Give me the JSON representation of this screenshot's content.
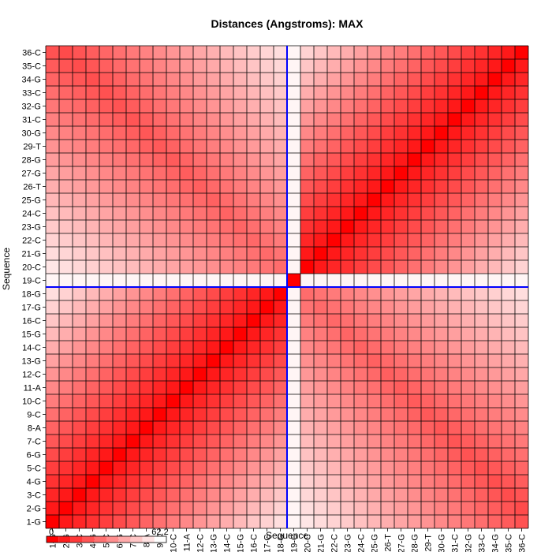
{
  "chart_data": {
    "type": "heatmap",
    "title": "Distances (Angstroms):  MAX",
    "xlabel": "Sequence",
    "ylabel": "Sequence",
    "x_categories": [
      "1-G",
      "2-G",
      "3-C",
      "4-G",
      "5-C",
      "6-G",
      "7-C",
      "8-A",
      "9-C",
      "10-C",
      "11-A",
      "12-C",
      "13-G",
      "14-C",
      "15-G",
      "16-C",
      "17-G",
      "18-G",
      "19-C",
      "20-C",
      "21-G",
      "22-C",
      "23-G",
      "24-C",
      "25-G",
      "26-T",
      "27-G",
      "28-G",
      "29-T",
      "30-G",
      "31-C",
      "32-G",
      "33-C",
      "34-G",
      "35-C",
      "36-C"
    ],
    "y_categories": [
      "1-G",
      "2-G",
      "3-C",
      "4-G",
      "5-C",
      "6-G",
      "7-C",
      "8-A",
      "9-C",
      "10-C",
      "11-A",
      "12-C",
      "13-G",
      "14-C",
      "15-G",
      "16-C",
      "17-G",
      "18-G",
      "19-C",
      "20-C",
      "21-G",
      "22-C",
      "23-G",
      "24-C",
      "25-G",
      "26-T",
      "27-G",
      "28-G",
      "29-T",
      "30-G",
      "31-C",
      "32-G",
      "33-C",
      "34-G",
      "35-C",
      "36-C"
    ],
    "value_range": [
      0,
      62.2
    ],
    "colorbar": {
      "min_label": "0",
      "max_label": "62.2",
      "low_color": "#ff0000",
      "high_color": "#ffffff"
    },
    "highlight": {
      "category": "19-C",
      "line_color": "#0000ff"
    },
    "grid": true,
    "description_of_values": "symmetric distance matrix; value grows with |i-j| within each half (1-18 and 20-36); cross-half pairs have intermediate values; row/column 19-C is near maximum except the diagonal"
  }
}
